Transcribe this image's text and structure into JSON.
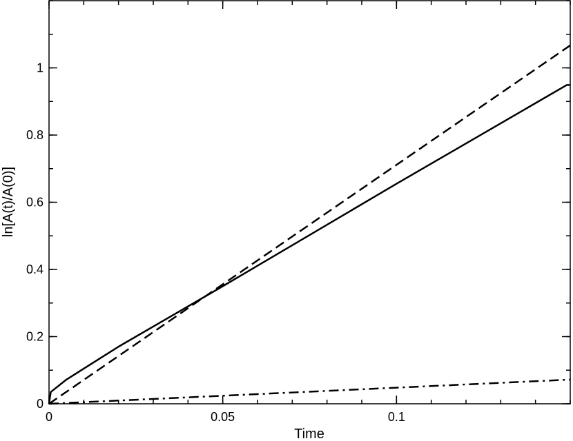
{
  "chart_data": {
    "type": "line",
    "title": "",
    "xlabel": "Time",
    "ylabel": "ln[A(t)/A(0)]",
    "xlim": [
      0,
      0.15
    ],
    "ylim": [
      0,
      1.2
    ],
    "x_ticks": [
      {
        "value": 0,
        "label": "0"
      },
      {
        "value": 0.05,
        "label": "0.05"
      },
      {
        "value": 0.1,
        "label": "0.1"
      }
    ],
    "y_ticks": [
      {
        "value": 0,
        "label": "0"
      },
      {
        "value": 0.2,
        "label": "0.2"
      },
      {
        "value": 0.4,
        "label": "0.4"
      },
      {
        "value": 0.6,
        "label": "0.6"
      },
      {
        "value": 0.8,
        "label": "0.8"
      },
      {
        "value": 1.0,
        "label": "1"
      }
    ],
    "x_minor_step": 0.01,
    "y_minor_step": 0.1,
    "grid": false,
    "legend": "none",
    "series": [
      {
        "style": "solid",
        "color": "#000000",
        "points": [
          [
            0,
            0
          ],
          [
            0.0005,
            0.035
          ],
          [
            0.005,
            0.072
          ],
          [
            0.02,
            0.17
          ],
          [
            0.05,
            0.35
          ],
          [
            0.1,
            0.655
          ],
          [
            0.149,
            0.949
          ],
          [
            0.15,
            0.949
          ]
        ]
      },
      {
        "style": "dashed",
        "color": "#000000",
        "points": [
          [
            0,
            0
          ],
          [
            0.15,
            1.067
          ]
        ]
      },
      {
        "style": "dashdot",
        "color": "#000000",
        "points": [
          [
            0,
            0
          ],
          [
            0.15,
            0.072
          ]
        ]
      }
    ]
  }
}
